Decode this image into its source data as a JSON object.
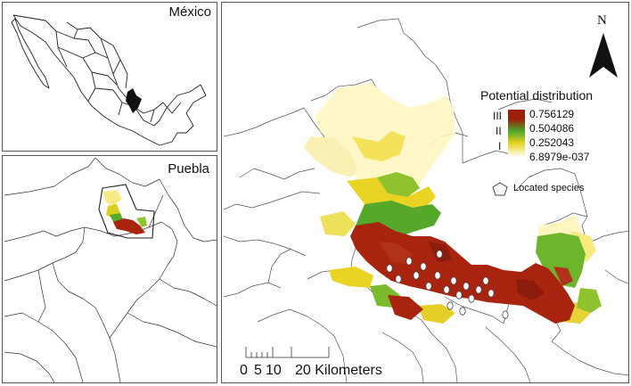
{
  "map": {
    "inset_mexico_title": "México",
    "inset_puebla_title": "Puebla",
    "legend": {
      "title": "Potential distribution",
      "classes": [
        "III",
        "II",
        "I"
      ],
      "values": [
        "0.756129",
        "0.504086",
        "0.252043",
        "6.8979e-037"
      ],
      "gradient_colors": [
        "#9c1f0a",
        "#4ba62a",
        "#e6d21e",
        "#fffbe6"
      ],
      "located_species_label": "Located species"
    },
    "north_arrow": {
      "label": "N",
      "icon": "north-arrow-icon"
    },
    "scale_bar": {
      "labels": [
        "0",
        "5",
        "10",
        "20 Kilometers"
      ]
    }
  }
}
